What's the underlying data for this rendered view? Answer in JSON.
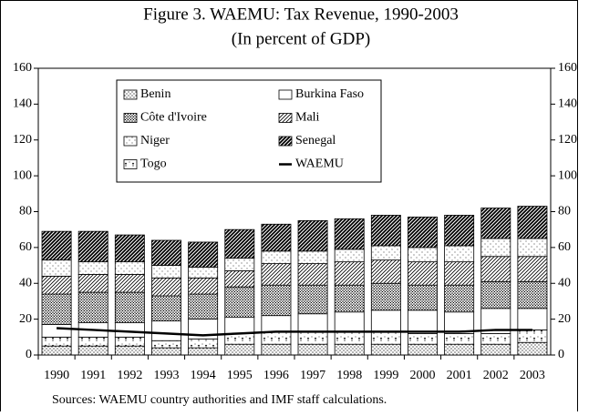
{
  "chart_data": {
    "type": "bar",
    "title": "Figure 3. WAEMU: Tax Revenue, 1990-2003",
    "subtitle": "(In percent of GDP)",
    "note": "Sources: WAEMU country authorities and IMF staff calculations.",
    "categories": [
      "1990",
      "1991",
      "1992",
      "1993",
      "1994",
      "1995",
      "1996",
      "1997",
      "1998",
      "1999",
      "2000",
      "2001",
      "2002",
      "2003"
    ],
    "series": [
      {
        "name": "Benin",
        "color": "#000000",
        "values": [
          5,
          5,
          5,
          4,
          4,
          6,
          6,
          6,
          6,
          6,
          6,
          6,
          6,
          7
        ]
      },
      {
        "name": "Burkina Faso",
        "color": "#000000",
        "values": [
          7,
          8,
          8,
          11,
          11,
          9,
          9,
          10,
          11,
          12,
          13,
          12,
          14,
          12
        ]
      },
      {
        "name": "Côte  d'Ivoire",
        "color": "#000000",
        "values": [
          17,
          17,
          17,
          14,
          14,
          17,
          17,
          16,
          15,
          15,
          14,
          15,
          15,
          15
        ]
      },
      {
        "name": "Mali",
        "color": "#000000",
        "values": [
          10,
          10,
          10,
          10,
          9,
          9,
          12,
          12,
          13,
          13,
          13,
          13,
          14,
          14
        ]
      },
      {
        "name": "Niger",
        "color": "#000000",
        "values": [
          9,
          7,
          7,
          7,
          6,
          7,
          7,
          7,
          7,
          8,
          8,
          9,
          10,
          10
        ]
      },
      {
        "name": "Senegal",
        "color": "#000000",
        "values": [
          16,
          17,
          15,
          14,
          14,
          16,
          15,
          17,
          17,
          17,
          17,
          17,
          17,
          18
        ]
      },
      {
        "name": "Togo",
        "color": "#000000",
        "values": [
          5,
          5,
          5,
          4,
          5,
          6,
          7,
          7,
          7,
          7,
          6,
          6,
          6,
          7
        ]
      },
      {
        "name": "WAEMU",
        "type": "line",
        "color": "#000000",
        "values": [
          15,
          14,
          13,
          12,
          11,
          12,
          13,
          13,
          13,
          13,
          13,
          13,
          14,
          14
        ]
      }
    ],
    "ylim": [
      0,
      160
    ],
    "yticks": [
      0,
      20,
      40,
      60,
      80,
      100,
      120,
      140,
      160
    ],
    "y2lim": [
      0,
      160
    ],
    "y2ticks": [
      0,
      20,
      40,
      60,
      80,
      100,
      120,
      140,
      160
    ],
    "legend": "top-left"
  }
}
